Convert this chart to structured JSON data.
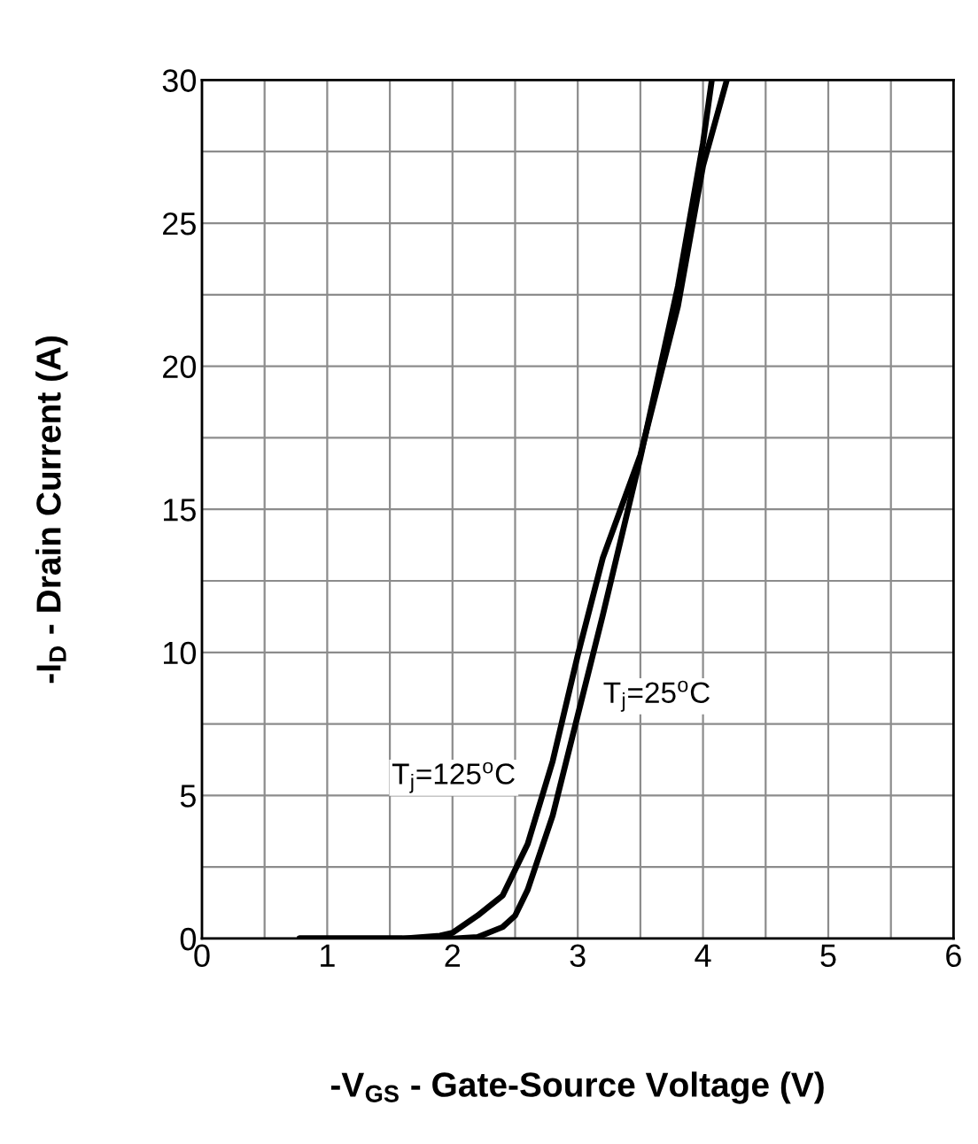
{
  "chart_data": {
    "type": "line",
    "xlabel": "-V$_{GS}$ - Gate-Source Voltage (V)",
    "ylabel": "-I$_{D}$ - Drain Current (A)",
    "series": [
      {
        "color": "#000000",
        "x": [
          0.78,
          2.0,
          2.2,
          2.4,
          2.5,
          2.6,
          2.8,
          3.0,
          3.2,
          3.5,
          3.8,
          4.0,
          4.07
        ],
        "values": [
          0,
          0,
          0.05,
          0.4,
          0.8,
          1.7,
          4.3,
          7.8,
          11.3,
          16.8,
          22.8,
          27.8,
          30
        ]
      },
      {
        "color": "#000000",
        "x": [
          0.78,
          1.6,
          1.9,
          2.0,
          2.2,
          2.4,
          2.6,
          2.8,
          3.0,
          3.2,
          3.5,
          3.8,
          4.0,
          4.19
        ],
        "values": [
          0,
          0,
          0.1,
          0.2,
          0.8,
          1.5,
          3.3,
          6.2,
          9.9,
          13.3,
          16.9,
          22.1,
          27,
          30
        ]
      }
    ],
    "annotations": [
      {
        "text": "T$_{j}$=25$^{o}$C",
        "x": 3.2,
        "y": 11.3
      },
      {
        "text": "T$_{j}$=125$^{o}$C",
        "x": 2.6,
        "y": 3.3
      }
    ],
    "xlim": [
      0,
      6
    ],
    "ylim": [
      0,
      30
    ],
    "xticks": [
      0,
      {
        "value": 0.5,
        "label": null
      },
      1,
      {
        "value": 1.5,
        "label": null
      },
      2,
      {
        "value": 2.5,
        "label": null
      },
      3,
      {
        "value": 3.5,
        "label": null
      },
      4,
      {
        "value": 4.5,
        "label": null
      },
      5,
      {
        "value": 5.5,
        "label": null
      },
      6
    ],
    "yticks": [
      0,
      {
        "value": 2.5,
        "label": null
      },
      5,
      {
        "value": 7.5,
        "label": null
      },
      10,
      {
        "value": 12.5,
        "label": null
      },
      15,
      {
        "value": 17.5,
        "label": null
      },
      20,
      {
        "value": 22.5,
        "label": null
      },
      25,
      {
        "value": 27.5,
        "label": null
      },
      30
    ],
    "grid": true,
    "marker": "none",
    "line_style": "solid",
    "legend": false
  }
}
